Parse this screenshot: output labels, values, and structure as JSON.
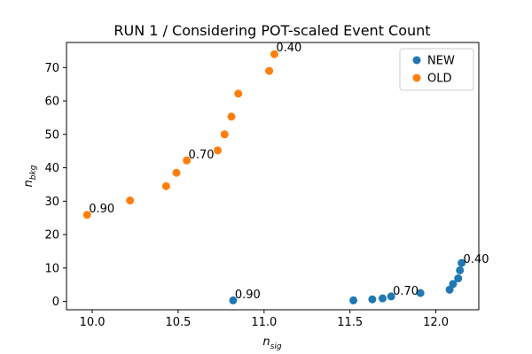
{
  "chart_data": {
    "type": "scatter",
    "title": "RUN 1 / Considering POT-scaled Event Count",
    "xlabel": {
      "base": "n",
      "sub": "sig"
    },
    "ylabel": {
      "base": "n",
      "sub": "bkg"
    },
    "xlim": [
      9.85,
      12.25
    ],
    "ylim": [
      -2.5,
      77.5
    ],
    "xticks": [
      10.0,
      10.5,
      11.0,
      11.5,
      12.0
    ],
    "xtick_labels": [
      "10.0",
      "10.5",
      "11.0",
      "11.5",
      "12.0"
    ],
    "yticks": [
      0,
      10,
      20,
      30,
      40,
      50,
      60,
      70
    ],
    "ytick_labels": [
      "0",
      "10",
      "20",
      "30",
      "40",
      "50",
      "60",
      "70"
    ],
    "grid": false,
    "legend": {
      "position": "top-right"
    },
    "series": [
      {
        "name": "NEW",
        "color": "#1f77b4",
        "points": [
          {
            "x": 12.15,
            "y": 11.5
          },
          {
            "x": 12.14,
            "y": 9.3
          },
          {
            "x": 12.13,
            "y": 6.9
          },
          {
            "x": 12.1,
            "y": 5.2
          },
          {
            "x": 12.08,
            "y": 3.5
          },
          {
            "x": 11.91,
            "y": 2.5
          },
          {
            "x": 11.74,
            "y": 1.5
          },
          {
            "x": 11.69,
            "y": 0.9
          },
          {
            "x": 11.63,
            "y": 0.6
          },
          {
            "x": 11.52,
            "y": 0.3
          },
          {
            "x": 10.82,
            "y": 0.3
          }
        ]
      },
      {
        "name": "OLD",
        "color": "#ff7f0e",
        "points": [
          {
            "x": 11.06,
            "y": 74.0
          },
          {
            "x": 11.03,
            "y": 69.0
          },
          {
            "x": 10.85,
            "y": 62.2
          },
          {
            "x": 10.81,
            "y": 55.3
          },
          {
            "x": 10.77,
            "y": 50.0
          },
          {
            "x": 10.73,
            "y": 45.2
          },
          {
            "x": 10.55,
            "y": 42.2
          },
          {
            "x": 10.49,
            "y": 38.5
          },
          {
            "x": 10.43,
            "y": 34.5
          },
          {
            "x": 10.22,
            "y": 30.2
          },
          {
            "x": 9.97,
            "y": 25.9
          }
        ]
      }
    ],
    "annotations": [
      {
        "text": "0.40",
        "x": 12.16,
        "y": 11.5
      },
      {
        "text": "0.70",
        "x": 11.75,
        "y": 2.0
      },
      {
        "text": "0.90",
        "x": 10.83,
        "y": 1.0
      },
      {
        "text": "0.40",
        "x": 11.07,
        "y": 74.8
      },
      {
        "text": "0.70",
        "x": 10.56,
        "y": 42.8
      },
      {
        "text": "0.90",
        "x": 9.98,
        "y": 26.6
      }
    ]
  }
}
